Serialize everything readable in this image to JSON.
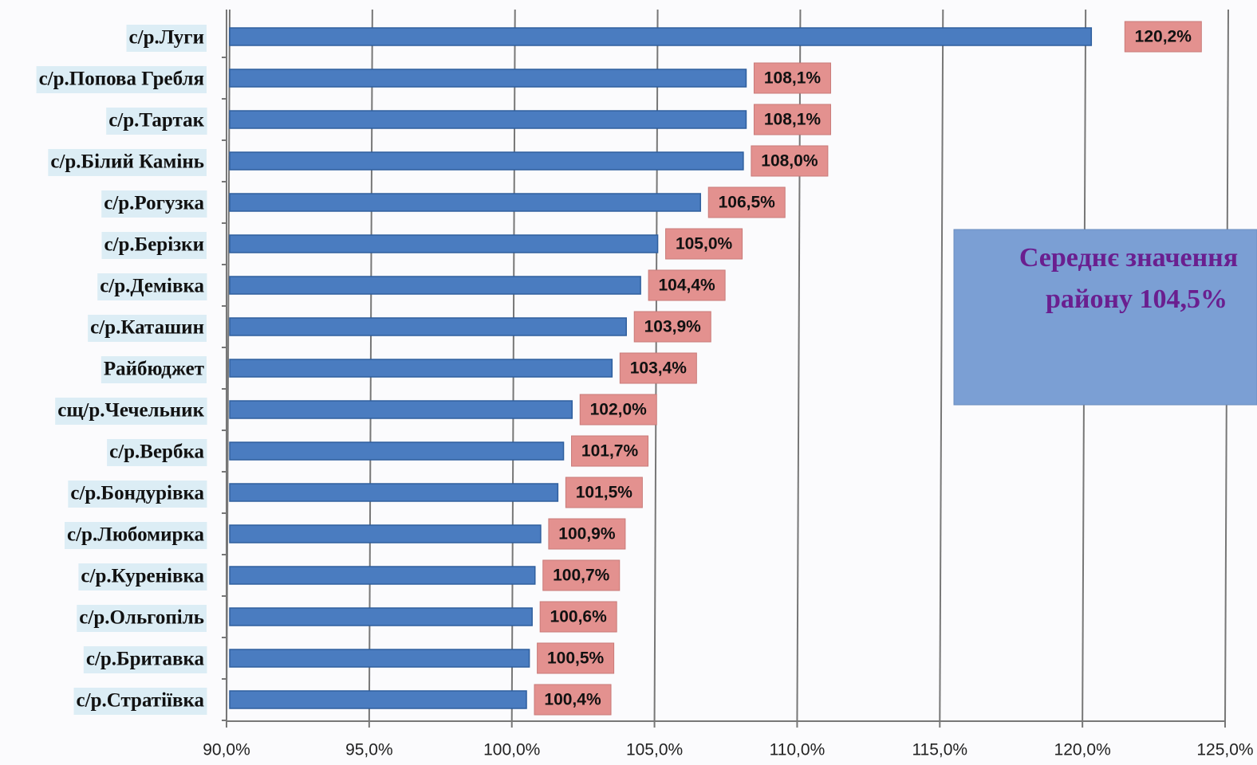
{
  "chart_data": {
    "type": "bar",
    "orientation": "horizontal",
    "categories": [
      "с/р.Луги",
      "с/р.Попова Гребля",
      "с/р.Тартак",
      "с/р.Білий Камінь",
      "с/р.Рогузка",
      "с/р.Берізки",
      "с/р.Демівка",
      "с/р.Каташин",
      "Райбюджет",
      "сщ/р.Чечельник",
      "с/р.Вербка",
      "с/р.Бондурівка",
      "с/р.Любомирка",
      "с/р.Куренівка",
      "с/р.Ольгопіль",
      "с/р.Бритавка",
      "с/р.Стратіївка"
    ],
    "values": [
      120.2,
      108.1,
      108.1,
      108.0,
      106.5,
      105.0,
      104.4,
      103.9,
      103.4,
      102.0,
      101.7,
      101.5,
      100.9,
      100.7,
      100.6,
      100.5,
      100.4
    ],
    "value_labels": [
      "120,2%",
      "108,1%",
      "108,1%",
      "108,0%",
      "106,5%",
      "105,0%",
      "104,4%",
      "103,9%",
      "103,4%",
      "102,0%",
      "101,7%",
      "101,5%",
      "100,9%",
      "100,7%",
      "100,6%",
      "100,5%",
      "100,4%"
    ],
    "color": "#4a7cc0",
    "xlim": [
      90,
      125
    ],
    "xticks": [
      {
        "value": 90,
        "label": "90,0%"
      },
      {
        "value": 95,
        "label": "95,0%"
      },
      {
        "value": 100,
        "label": "100,0%"
      },
      {
        "value": 105,
        "label": "105,0%"
      },
      {
        "value": 110,
        "label": "110,0%"
      },
      {
        "value": 115,
        "label": "115,0%"
      },
      {
        "value": 120,
        "label": "120,0%"
      },
      {
        "value": 125,
        "label": "125,0%"
      }
    ],
    "grid": true,
    "annotation": [
      "Середнє значення",
      "району 104,5%"
    ]
  }
}
